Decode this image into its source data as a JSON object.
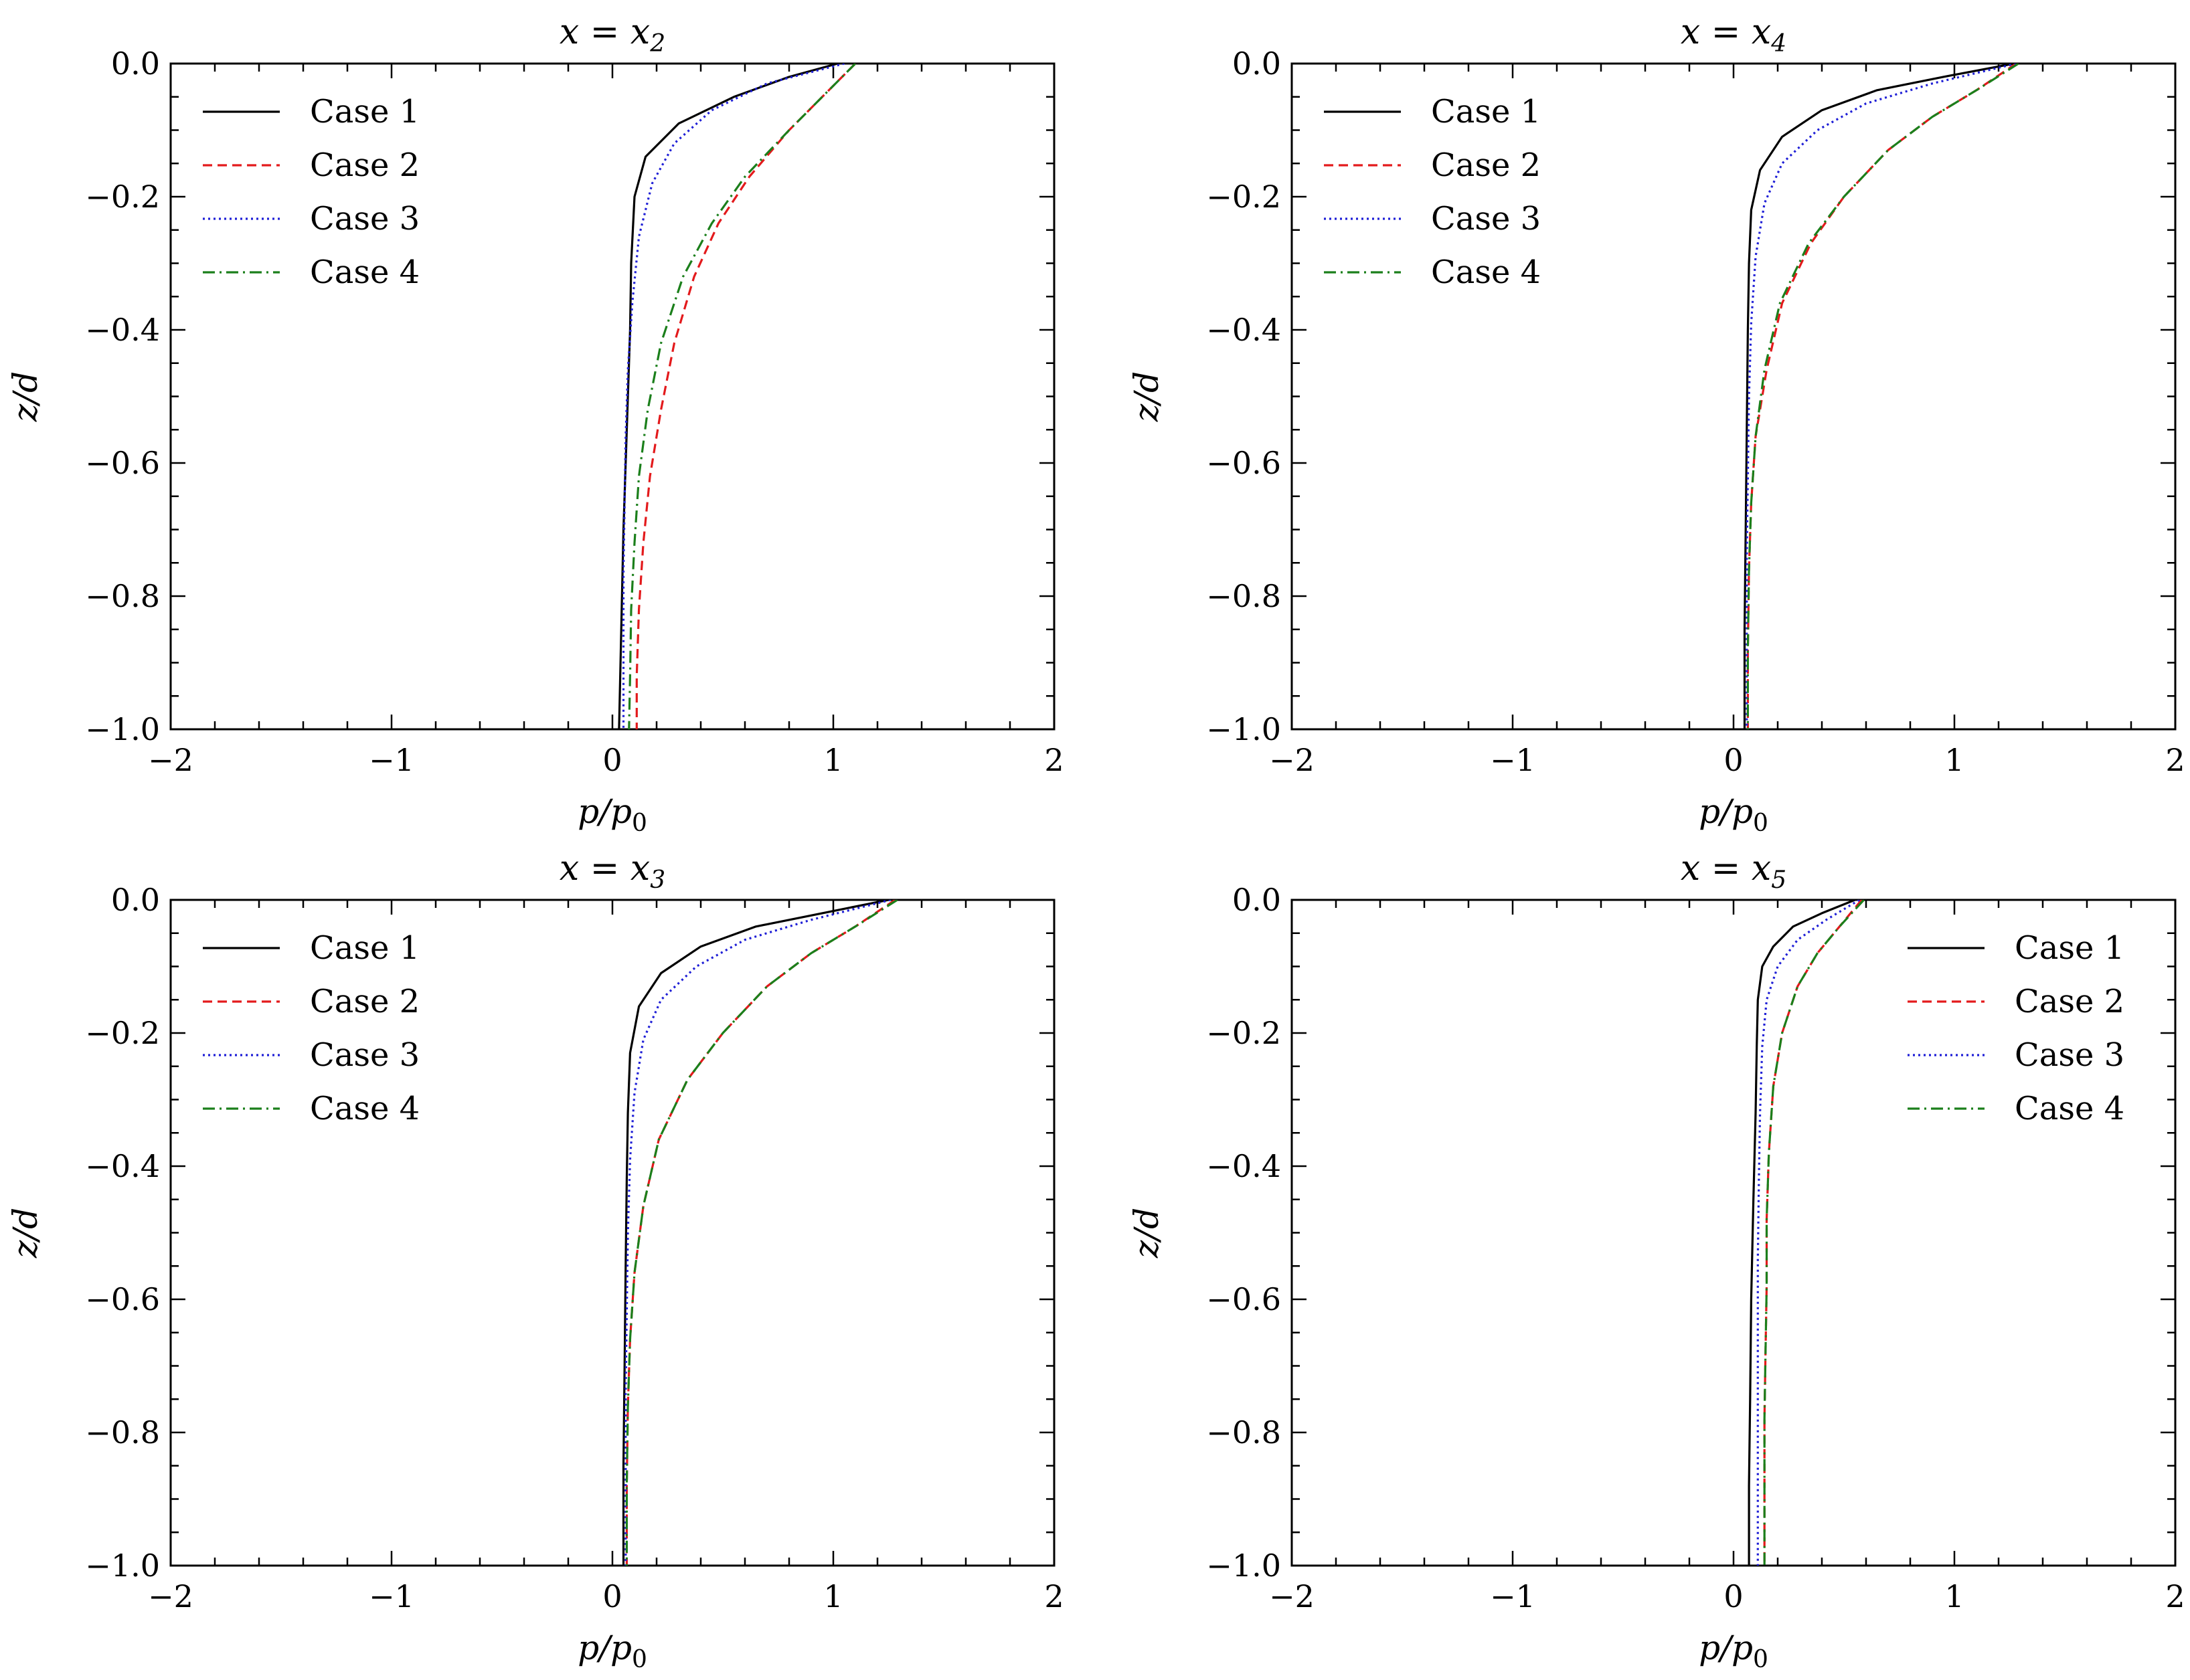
{
  "figure": {
    "panels_layout": "2x2"
  },
  "styles": {
    "Case 1": {
      "color": "#000000",
      "dash": ""
    },
    "Case 2": {
      "color": "#e31a1c",
      "dash": "14,8"
    },
    "Case 3": {
      "color": "#1f1fd6",
      "dash": "3,5"
    },
    "Case 4": {
      "color": "#1b7f1b",
      "dash": "18,7,3,7"
    }
  },
  "chart_data": [
    {
      "type": "line",
      "title_var": "x = x",
      "title_sub": "2",
      "xlabel_main": "p/p",
      "xlabel_sub": "0",
      "ylabel": "z/d",
      "xlim": [
        -2,
        2
      ],
      "ylim": [
        -1,
        0
      ],
      "xticks": [
        "−2",
        "−1",
        "0",
        "1",
        "2"
      ],
      "yticks": [
        "0.0",
        "−0.2",
        "−0.4",
        "−0.6",
        "−0.8",
        "−1.0"
      ],
      "legend_loc": "upper-left",
      "series": [
        {
          "name": "Case 1",
          "x": [
            1.02,
            0.8,
            0.55,
            0.3,
            0.15,
            0.1,
            0.085,
            0.08,
            0.07,
            0.06,
            0.05,
            0.04,
            0.03
          ],
          "y": [
            0.0,
            -0.02,
            -0.05,
            -0.09,
            -0.14,
            -0.2,
            -0.3,
            -0.4,
            -0.5,
            -0.6,
            -0.7,
            -0.85,
            -1.0
          ]
        },
        {
          "name": "Case 2",
          "x": [
            1.1,
            0.95,
            0.8,
            0.62,
            0.48,
            0.37,
            0.28,
            0.22,
            0.17,
            0.14,
            0.12,
            0.11,
            0.11
          ],
          "y": [
            0.0,
            -0.05,
            -0.1,
            -0.17,
            -0.24,
            -0.32,
            -0.42,
            -0.52,
            -0.62,
            -0.72,
            -0.82,
            -0.92,
            -1.0
          ]
        },
        {
          "name": "Case 3",
          "x": [
            1.05,
            0.7,
            0.45,
            0.28,
            0.18,
            0.12,
            0.09,
            0.07,
            0.06,
            0.055,
            0.05,
            0.05,
            0.05
          ],
          "y": [
            0.0,
            -0.03,
            -0.07,
            -0.12,
            -0.18,
            -0.26,
            -0.36,
            -0.46,
            -0.56,
            -0.66,
            -0.76,
            -0.88,
            -1.0
          ]
        },
        {
          "name": "Case 4",
          "x": [
            1.1,
            0.95,
            0.8,
            0.6,
            0.45,
            0.32,
            0.22,
            0.16,
            0.12,
            0.1,
            0.085,
            0.08,
            0.075
          ],
          "y": [
            0.0,
            -0.05,
            -0.1,
            -0.17,
            -0.24,
            -0.32,
            -0.42,
            -0.52,
            -0.62,
            -0.72,
            -0.82,
            -0.92,
            -1.0
          ]
        }
      ]
    },
    {
      "type": "line",
      "title_var": "x = x",
      "title_sub": "4",
      "xlabel_main": "p/p",
      "xlabel_sub": "0",
      "ylabel": "z/d",
      "xlim": [
        -2,
        2
      ],
      "ylim": [
        -1,
        0
      ],
      "xticks": [
        "−2",
        "−1",
        "0",
        "1",
        "2"
      ],
      "yticks": [
        "0.0",
        "−0.2",
        "−0.4",
        "−0.6",
        "−0.8",
        "−1.0"
      ],
      "legend_loc": "upper-left",
      "series": [
        {
          "name": "Case 1",
          "x": [
            1.27,
            0.95,
            0.65,
            0.4,
            0.22,
            0.12,
            0.08,
            0.07,
            0.065,
            0.06,
            0.055,
            0.05,
            0.05
          ],
          "y": [
            0.0,
            -0.02,
            -0.04,
            -0.07,
            -0.11,
            -0.16,
            -0.22,
            -0.3,
            -0.4,
            -0.55,
            -0.7,
            -0.85,
            -1.0
          ]
        },
        {
          "name": "Case 2",
          "x": [
            1.28,
            1.1,
            0.9,
            0.7,
            0.5,
            0.35,
            0.22,
            0.15,
            0.1,
            0.08,
            0.07,
            0.065,
            0.065
          ],
          "y": [
            0.0,
            -0.04,
            -0.08,
            -0.13,
            -0.2,
            -0.27,
            -0.36,
            -0.46,
            -0.56,
            -0.66,
            -0.76,
            -0.88,
            -1.0
          ]
        },
        {
          "name": "Case 3",
          "x": [
            1.28,
            0.9,
            0.6,
            0.38,
            0.22,
            0.14,
            0.1,
            0.08,
            0.07,
            0.065,
            0.06,
            0.06,
            0.06
          ],
          "y": [
            0.0,
            -0.03,
            -0.06,
            -0.1,
            -0.15,
            -0.21,
            -0.29,
            -0.39,
            -0.5,
            -0.62,
            -0.74,
            -0.87,
            -1.0
          ]
        },
        {
          "name": "Case 4",
          "x": [
            1.29,
            1.1,
            0.9,
            0.7,
            0.5,
            0.34,
            0.21,
            0.14,
            0.1,
            0.08,
            0.07,
            0.065,
            0.065
          ],
          "y": [
            0.0,
            -0.04,
            -0.08,
            -0.13,
            -0.2,
            -0.27,
            -0.36,
            -0.46,
            -0.56,
            -0.66,
            -0.76,
            -0.88,
            -1.0
          ]
        }
      ]
    },
    {
      "type": "line",
      "title_var": "x = x",
      "title_sub": "3",
      "xlabel_main": "p/p",
      "xlabel_sub": "0",
      "ylabel": "z/d",
      "xlim": [
        -2,
        2
      ],
      "ylim": [
        -1,
        0
      ],
      "xticks": [
        "−2",
        "−1",
        "0",
        "1",
        "2"
      ],
      "yticks": [
        "0.0",
        "−0.2",
        "−0.4",
        "−0.6",
        "−0.8",
        "−1.0"
      ],
      "legend_loc": "upper-left",
      "series": [
        {
          "name": "Case 1",
          "x": [
            1.25,
            0.95,
            0.65,
            0.4,
            0.22,
            0.12,
            0.08,
            0.07,
            0.065,
            0.06,
            0.055,
            0.05,
            0.05
          ],
          "y": [
            0.0,
            -0.02,
            -0.04,
            -0.07,
            -0.11,
            -0.16,
            -0.23,
            -0.32,
            -0.42,
            -0.55,
            -0.7,
            -0.85,
            -1.0
          ]
        },
        {
          "name": "Case 2",
          "x": [
            1.28,
            1.1,
            0.9,
            0.7,
            0.5,
            0.34,
            0.21,
            0.14,
            0.1,
            0.08,
            0.07,
            0.065,
            0.065
          ],
          "y": [
            0.0,
            -0.04,
            -0.08,
            -0.13,
            -0.2,
            -0.27,
            -0.36,
            -0.46,
            -0.56,
            -0.66,
            -0.76,
            -0.88,
            -1.0
          ]
        },
        {
          "name": "Case 3",
          "x": [
            1.26,
            0.9,
            0.6,
            0.38,
            0.22,
            0.14,
            0.1,
            0.08,
            0.07,
            0.065,
            0.06,
            0.06,
            0.06
          ],
          "y": [
            0.0,
            -0.03,
            -0.06,
            -0.1,
            -0.15,
            -0.21,
            -0.29,
            -0.39,
            -0.5,
            -0.62,
            -0.74,
            -0.87,
            -1.0
          ]
        },
        {
          "name": "Case 4",
          "x": [
            1.29,
            1.1,
            0.9,
            0.7,
            0.5,
            0.34,
            0.21,
            0.14,
            0.1,
            0.08,
            0.07,
            0.065,
            0.065
          ],
          "y": [
            0.0,
            -0.04,
            -0.08,
            -0.13,
            -0.2,
            -0.27,
            -0.36,
            -0.46,
            -0.56,
            -0.66,
            -0.76,
            -0.88,
            -1.0
          ]
        }
      ]
    },
    {
      "type": "line",
      "title_var": "x = x",
      "title_sub": "5",
      "xlabel_main": "p/p",
      "xlabel_sub": "0",
      "ylabel": "z/d",
      "xlim": [
        -2,
        2
      ],
      "ylim": [
        -1,
        0
      ],
      "xticks": [
        "−2",
        "−1",
        "0",
        "1",
        "2"
      ],
      "yticks": [
        "0.0",
        "−0.2",
        "−0.4",
        "−0.6",
        "−0.8",
        "−1.0"
      ],
      "legend_loc": "upper-right",
      "series": [
        {
          "name": "Case 1",
          "x": [
            0.55,
            0.4,
            0.27,
            0.18,
            0.13,
            0.11,
            0.105,
            0.1,
            0.09,
            0.08,
            0.075,
            0.07,
            0.07
          ],
          "y": [
            0.0,
            -0.02,
            -0.04,
            -0.07,
            -0.1,
            -0.15,
            -0.22,
            -0.32,
            -0.45,
            -0.6,
            -0.75,
            -0.88,
            -1.0
          ]
        },
        {
          "name": "Case 2",
          "x": [
            0.58,
            0.48,
            0.38,
            0.29,
            0.22,
            0.18,
            0.16,
            0.15,
            0.15,
            0.145,
            0.14,
            0.14,
            0.14
          ],
          "y": [
            0.0,
            -0.04,
            -0.08,
            -0.13,
            -0.2,
            -0.28,
            -0.38,
            -0.48,
            -0.58,
            -0.68,
            -0.78,
            -0.9,
            -1.0
          ]
        },
        {
          "name": "Case 3",
          "x": [
            0.57,
            0.42,
            0.29,
            0.2,
            0.15,
            0.13,
            0.12,
            0.115,
            0.11,
            0.11,
            0.11,
            0.11,
            0.11
          ],
          "y": [
            0.0,
            -0.03,
            -0.06,
            -0.1,
            -0.15,
            -0.22,
            -0.32,
            -0.42,
            -0.54,
            -0.66,
            -0.78,
            -0.9,
            -1.0
          ]
        },
        {
          "name": "Case 4",
          "x": [
            0.59,
            0.48,
            0.38,
            0.29,
            0.22,
            0.18,
            0.16,
            0.15,
            0.15,
            0.145,
            0.14,
            0.14,
            0.14
          ],
          "y": [
            0.0,
            -0.04,
            -0.08,
            -0.13,
            -0.2,
            -0.28,
            -0.38,
            -0.48,
            -0.58,
            -0.68,
            -0.78,
            -0.9,
            -1.0
          ]
        }
      ]
    }
  ]
}
